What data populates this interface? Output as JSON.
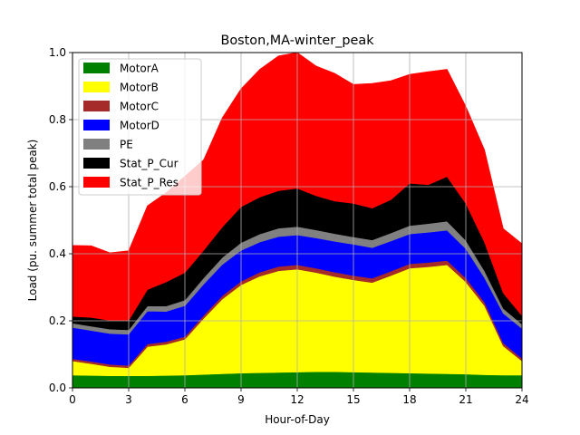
{
  "chart_data": {
    "type": "area",
    "stacked": true,
    "title": "Boston,MA-winter_peak",
    "xlabel": "Hour-of-Day",
    "ylabel": "Load (pu. summer total peak)",
    "xlim": [
      0,
      24
    ],
    "ylim": [
      0,
      1.0
    ],
    "xticks": [
      "0",
      "3",
      "6",
      "9",
      "12",
      "15",
      "18",
      "21",
      "24"
    ],
    "yticks": [
      "0.0",
      "0.2",
      "0.4",
      "0.6",
      "0.8",
      "1.0"
    ],
    "grid": true,
    "legend_position": "top-left",
    "x": [
      0,
      1,
      2,
      3,
      4,
      5,
      6,
      7,
      8,
      9,
      10,
      11,
      12,
      13,
      14,
      15,
      16,
      17,
      18,
      19,
      20,
      21,
      22,
      23,
      24
    ],
    "series": [
      {
        "name": "MotorA",
        "color": "#008000",
        "values": [
          0.038,
          0.037,
          0.036,
          0.036,
          0.036,
          0.037,
          0.038,
          0.04,
          0.042,
          0.044,
          0.045,
          0.046,
          0.047,
          0.048,
          0.048,
          0.047,
          0.046,
          0.045,
          0.044,
          0.043,
          0.042,
          0.041,
          0.039,
          0.038,
          0.038
        ]
      },
      {
        "name": "MotorB",
        "color": "#ffff00",
        "values": [
          0.042,
          0.035,
          0.027,
          0.024,
          0.087,
          0.093,
          0.107,
          0.167,
          0.223,
          0.263,
          0.288,
          0.303,
          0.307,
          0.296,
          0.284,
          0.275,
          0.268,
          0.29,
          0.313,
          0.318,
          0.325,
          0.275,
          0.206,
          0.087,
          0.042
        ]
      },
      {
        "name": "MotorC",
        "color": "#a52a2a",
        "values": [
          0.007,
          0.007,
          0.007,
          0.007,
          0.008,
          0.008,
          0.008,
          0.009,
          0.01,
          0.011,
          0.012,
          0.013,
          0.013,
          0.013,
          0.013,
          0.013,
          0.013,
          0.013,
          0.013,
          0.013,
          0.013,
          0.012,
          0.011,
          0.009,
          0.008
        ]
      },
      {
        "name": "MotorD",
        "color": "#0000ff",
        "values": [
          0.093,
          0.092,
          0.092,
          0.093,
          0.098,
          0.09,
          0.092,
          0.093,
          0.093,
          0.092,
          0.09,
          0.089,
          0.089,
          0.09,
          0.092,
          0.093,
          0.091,
          0.09,
          0.089,
          0.09,
          0.09,
          0.087,
          0.072,
          0.088,
          0.089
        ]
      },
      {
        "name": "PE",
        "color": "#808080",
        "values": [
          0.013,
          0.013,
          0.013,
          0.013,
          0.015,
          0.016,
          0.017,
          0.019,
          0.021,
          0.023,
          0.024,
          0.025,
          0.025,
          0.024,
          0.023,
          0.022,
          0.023,
          0.024,
          0.025,
          0.026,
          0.027,
          0.025,
          0.021,
          0.015,
          0.013
        ]
      },
      {
        "name": "Stat_P_Cur",
        "color": "#000000",
        "values": [
          0.02,
          0.026,
          0.026,
          0.028,
          0.049,
          0.072,
          0.082,
          0.082,
          0.091,
          0.107,
          0.11,
          0.112,
          0.114,
          0.102,
          0.097,
          0.1,
          0.095,
          0.099,
          0.126,
          0.116,
          0.133,
          0.11,
          0.085,
          0.046,
          0.025
        ]
      },
      {
        "name": "Stat_P_Res",
        "color": "#ff0000",
        "values": [
          0.212,
          0.214,
          0.202,
          0.208,
          0.25,
          0.266,
          0.287,
          0.27,
          0.326,
          0.352,
          0.381,
          0.402,
          0.405,
          0.387,
          0.381,
          0.355,
          0.372,
          0.355,
          0.325,
          0.337,
          0.32,
          0.29,
          0.276,
          0.192,
          0.215
        ]
      }
    ]
  }
}
